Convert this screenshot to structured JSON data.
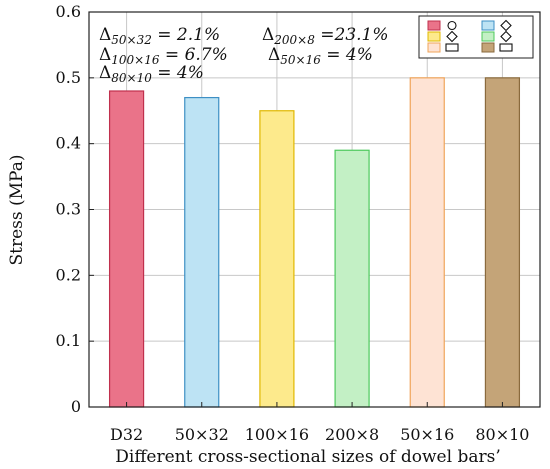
{
  "chart_data": {
    "type": "bar",
    "xlabel": "Different cross-sectional sizes of dowel bars’",
    "ylabel": "Stress (MPa)",
    "ylim": [
      0,
      0.6
    ],
    "yticks": [
      "0",
      "0.1",
      "0.2",
      "0.3",
      "0.4",
      "0.5",
      "0.6"
    ],
    "grid": true,
    "categories": [
      "D32",
      "50×32",
      "100×16",
      "200×8",
      "50×16",
      "80×10"
    ],
    "values": [
      0.48,
      0.47,
      0.45,
      0.39,
      0.5,
      0.5
    ],
    "bar_colors": [
      "#ea7389",
      "#bde3f4",
      "#fdea8c",
      "#c3f0c5",
      "#fee3d4",
      "#c4a478"
    ],
    "bar_strokes": [
      "#c0304d",
      "#3d8fc4",
      "#e0b800",
      "#4cc95c",
      "#f0a45a",
      "#8a6a3d"
    ],
    "annotations": [
      {
        "delta": "Δ",
        "sub": "50×32",
        "text": " = 2.1%"
      },
      {
        "delta": "Δ",
        "sub": "100×16",
        "text": " = 6.7%"
      },
      {
        "delta": "Δ",
        "sub": "80×10",
        "text": " = 4%"
      },
      {
        "delta": "Δ",
        "sub": "200×8",
        "text": " =23.1%"
      },
      {
        "delta": "Δ",
        "sub": "50×16",
        "text": " = 4%"
      }
    ],
    "legend": {
      "placement": "top-right",
      "entries": [
        {
          "color": "#ea7389",
          "stroke": "#c0304d",
          "marker": "circle-icon"
        },
        {
          "color": "#bde3f4",
          "stroke": "#3d8fc4",
          "marker": "diamond-icon"
        },
        {
          "color": "#fdea8c",
          "stroke": "#e0b800",
          "marker": "diamond-icon"
        },
        {
          "color": "#c3f0c5",
          "stroke": "#4cc95c",
          "marker": "diamond-icon"
        },
        {
          "color": "#fee3d4",
          "stroke": "#f0a45a",
          "marker": "rectangle-icon"
        },
        {
          "color": "#c4a478",
          "stroke": "#8a6a3d",
          "marker": "rectangle-icon"
        }
      ]
    }
  }
}
